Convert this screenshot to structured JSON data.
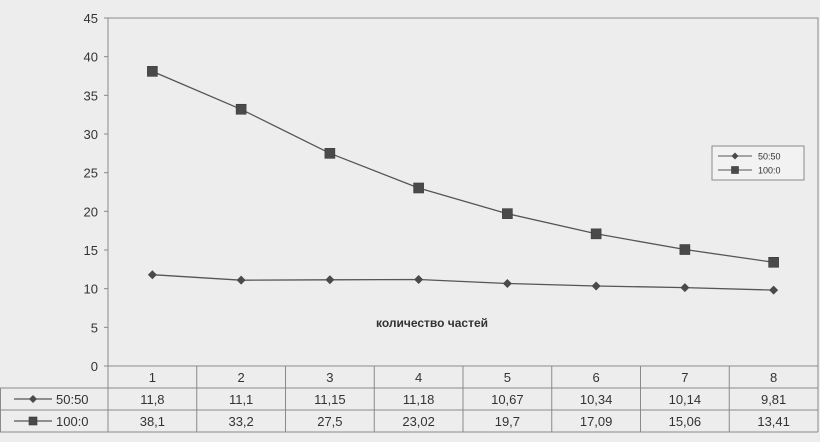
{
  "chart_data": {
    "type": "line",
    "categories": [
      "1",
      "2",
      "3",
      "4",
      "5",
      "6",
      "7",
      "8"
    ],
    "series": [
      {
        "name": "50:50",
        "values": [
          11.8,
          11.1,
          11.15,
          11.18,
          10.67,
          10.34,
          10.14,
          9.81
        ],
        "labels": [
          "11,8",
          "11,1",
          "11,15",
          "11,18",
          "10,67",
          "10,34",
          "10,14",
          "9,81"
        ],
        "marker": "diamond"
      },
      {
        "name": "100:0",
        "values": [
          38.1,
          33.2,
          27.5,
          23.02,
          19.7,
          17.09,
          15.06,
          13.41
        ],
        "labels": [
          "38,1",
          "33,2",
          "27,5",
          "23,02",
          "19,7",
          "17,09",
          "15,06",
          "13,41"
        ],
        "marker": "square"
      }
    ],
    "annotation": "количество частей",
    "yticks": [
      "0",
      "5",
      "10",
      "15",
      "20",
      "25",
      "30",
      "35",
      "40",
      "45"
    ],
    "ylim": [
      0,
      45
    ],
    "grid": false,
    "legend": "right",
    "data_table": true,
    "colors": {
      "line": "#555555",
      "marker": "#4a4a4a",
      "frame": "#8a8a8a",
      "background": "#ededed"
    }
  }
}
